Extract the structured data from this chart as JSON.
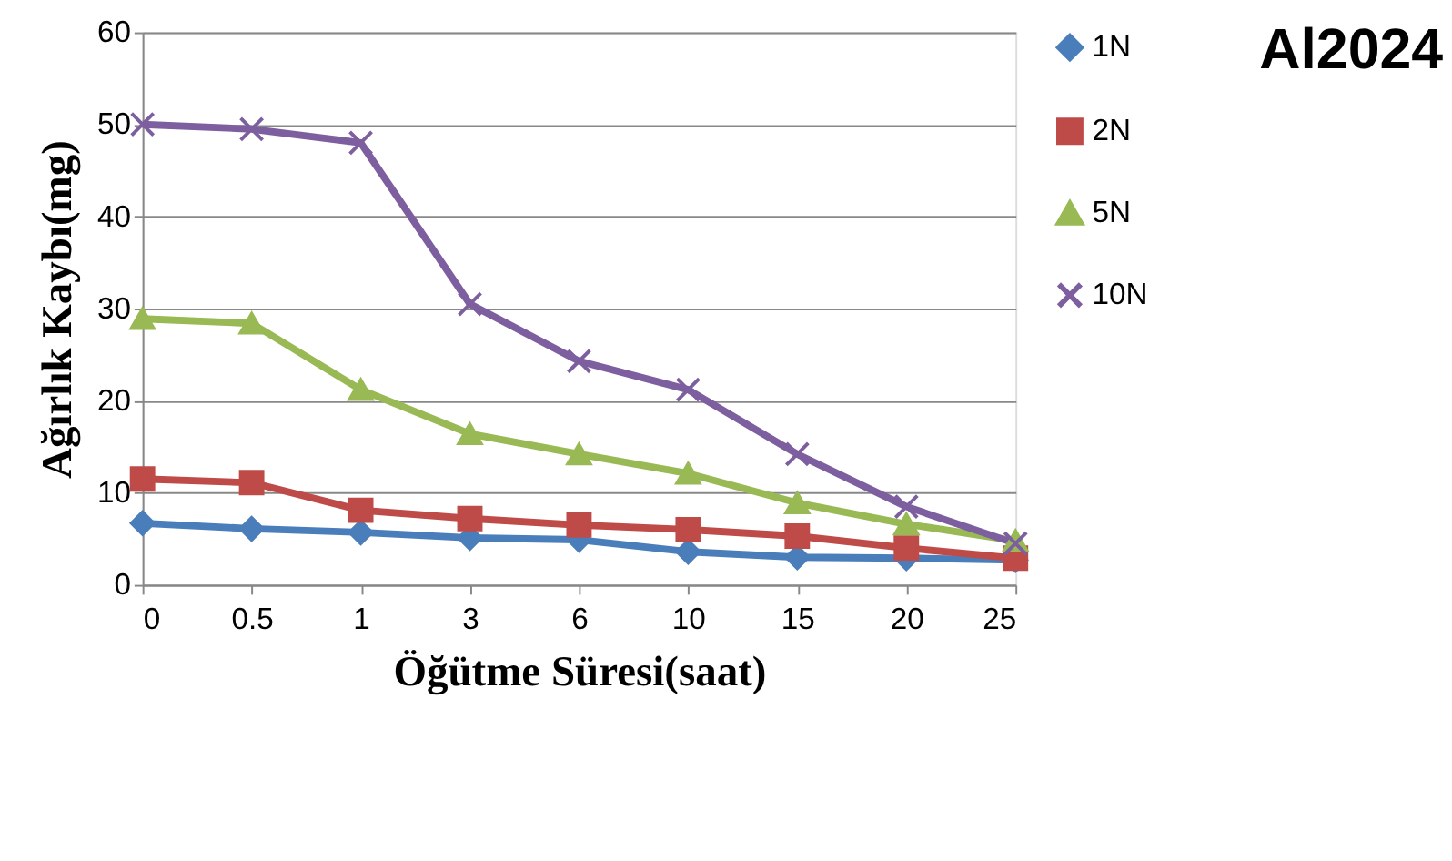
{
  "chart_data": {
    "type": "line",
    "title": "Al2024",
    "xlabel": "Öğütme Süresi(saat)",
    "ylabel": "Ağırlık Kaybı(mg)",
    "categories": [
      "0",
      "0.5",
      "1",
      "3",
      "6",
      "10",
      "15",
      "20",
      "25"
    ],
    "series": [
      {
        "name": "1N",
        "color": "#4a7ebb",
        "marker": "diamond",
        "values": [
          6.7,
          6.1,
          5.7,
          5.1,
          4.9,
          3.6,
          3.0,
          2.9,
          2.7
        ]
      },
      {
        "name": "2N",
        "color": "#be4b48",
        "marker": "square",
        "values": [
          11.5,
          11.1,
          8.1,
          7.2,
          6.5,
          6.0,
          5.3,
          4.0,
          2.9
        ]
      },
      {
        "name": "5N",
        "color": "#98b954",
        "marker": "triangle",
        "values": [
          28.9,
          28.4,
          21.2,
          16.4,
          14.2,
          12.1,
          8.9,
          6.6,
          4.8
        ]
      },
      {
        "name": "10N",
        "color": "#7d5fa0",
        "marker": "cross",
        "values": [
          50,
          49.5,
          48,
          30.5,
          24.3,
          21.2,
          14.2,
          8.5,
          4.5
        ]
      }
    ],
    "ylim": [
      0,
      60
    ],
    "yticks": [
      0,
      10,
      20,
      30,
      40,
      50,
      60
    ],
    "grid": "y",
    "legend": "right",
    "line_style": "solid"
  }
}
